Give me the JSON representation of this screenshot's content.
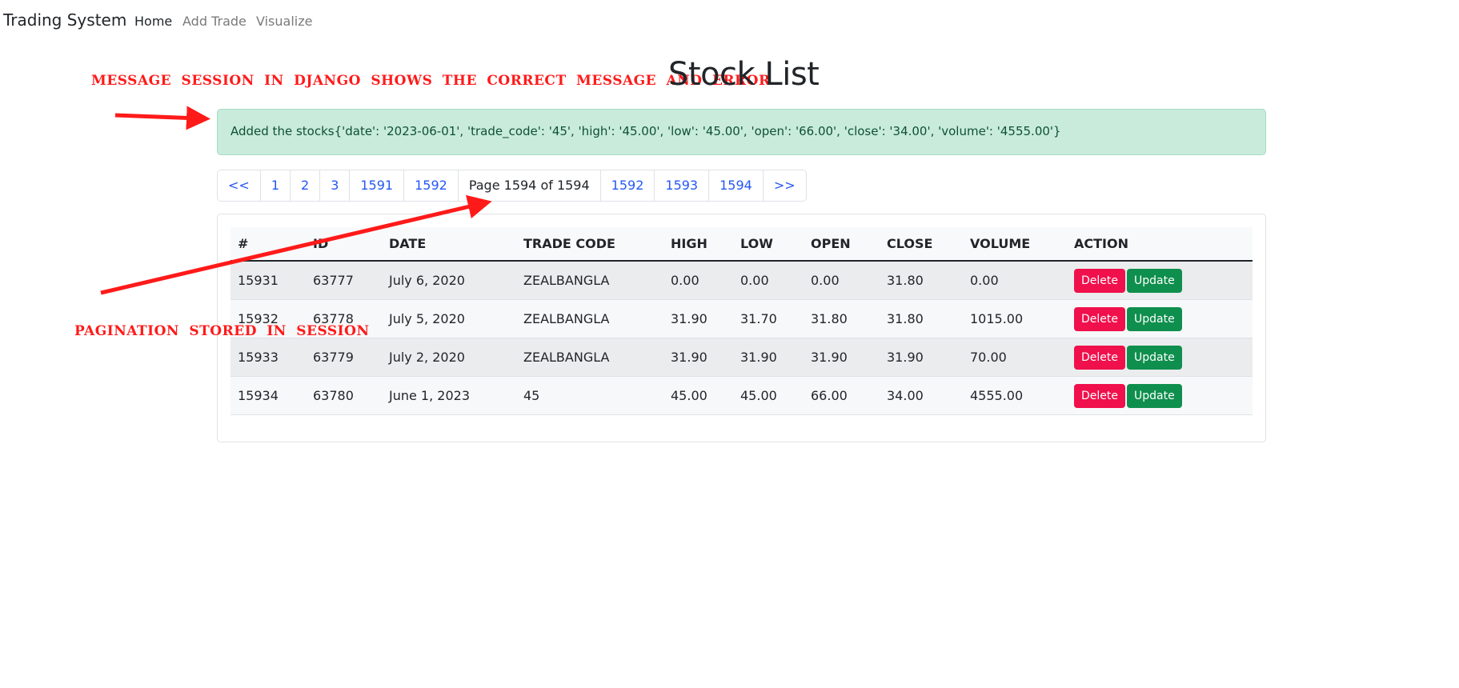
{
  "navbar": {
    "brand": "Trading System",
    "links": [
      "Home",
      "Add Trade",
      "Visualize"
    ]
  },
  "annotations": {
    "message": "MESSAGE SESSION IN DJANGO SHOWS THE CORRECT MESSAGE AND ERROR",
    "pagination": "PAGINATION STORED IN SESSION",
    "arrow_color": "#ff1a1a"
  },
  "page": {
    "title": "Stock List"
  },
  "alert": {
    "text": "Added the stocks{'date': '2023-06-01', 'trade_code': '45', 'high': '45.00', 'low': '45.00', 'open': '66.00', 'close': '34.00', 'volume': '4555.00'}"
  },
  "pagination": {
    "items": [
      "<<",
      "1",
      "2",
      "3",
      "1591",
      "1592",
      "Page 1594 of 1594",
      "1592",
      "1593",
      "1594",
      ">>"
    ]
  },
  "table": {
    "headers": [
      "#",
      "ID",
      "DATE",
      "TRADE CODE",
      "HIGH",
      "LOW",
      "OPEN",
      "CLOSE",
      "VOLUME",
      "ACTION"
    ],
    "rows": [
      [
        "15931",
        "63777",
        "July 6, 2020",
        "ZEALBANGLA",
        "0.00",
        "0.00",
        "0.00",
        "31.80",
        "0.00"
      ],
      [
        "15932",
        "63778",
        "July 5, 2020",
        "ZEALBANGLA",
        "31.90",
        "31.70",
        "31.80",
        "31.80",
        "1015.00"
      ],
      [
        "15933",
        "63779",
        "July 2, 2020",
        "ZEALBANGLA",
        "31.90",
        "31.90",
        "31.90",
        "31.90",
        "70.00"
      ],
      [
        "15934",
        "63780",
        "June 1, 2023",
        "45",
        "45.00",
        "45.00",
        "66.00",
        "34.00",
        "4555.00"
      ]
    ],
    "delete_label": "Delete",
    "update_label": "Update"
  }
}
